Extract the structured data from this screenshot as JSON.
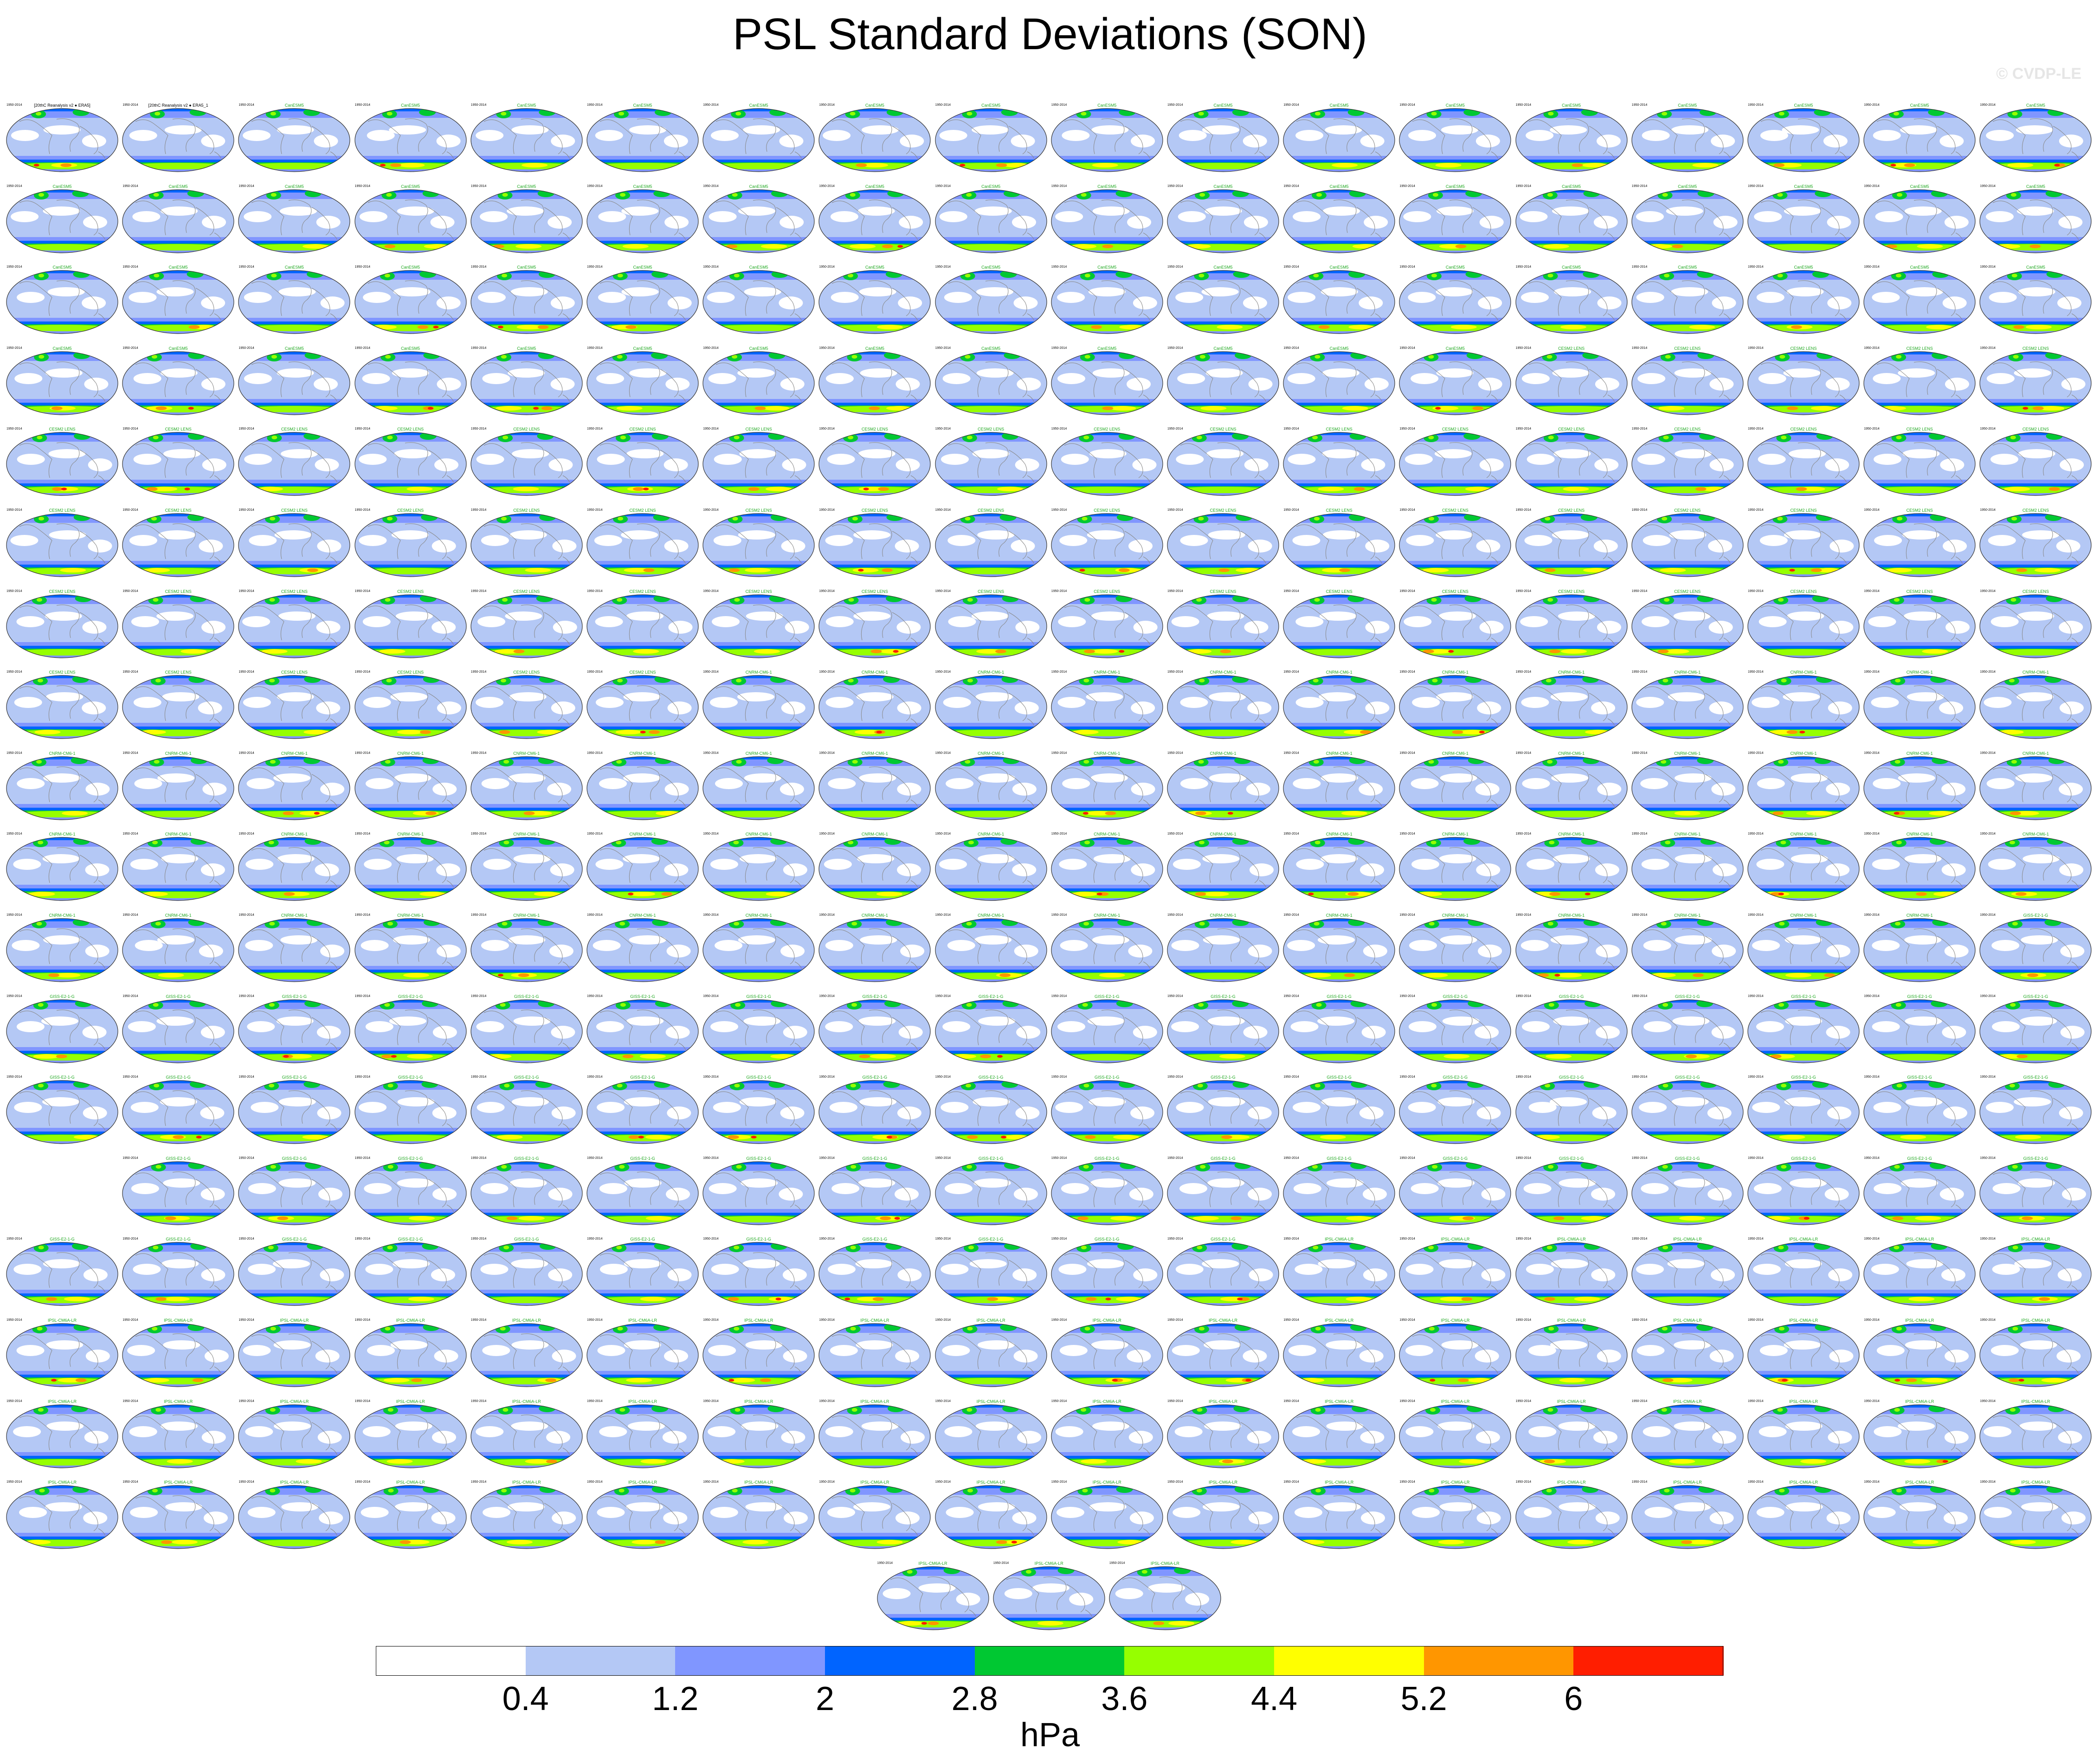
{
  "title": "PSL Standard Deviations (SON)",
  "watermark": "© CVDP-LE",
  "units": "hPa",
  "colors": {
    "levels": [
      "#ffffff",
      "#b4c8f5",
      "#8096ff",
      "#0064ff",
      "#00c832",
      "#96ff00",
      "#ffff00",
      "#ff9600",
      "#ff1e00"
    ],
    "land_outline": "#888888",
    "map_border": "#333333"
  },
  "panel_labels": {
    "obs": [
      "[20thC Reanalysis v2 ● ERA5]",
      "[20thC Reanalysis v2 ● ERA5_1"
    ],
    "models": [
      "CanESM5",
      "CESM2 LENS",
      "CNRM-CM6-1",
      "GISS-E2-1-G",
      "IPSL-CM6A-LR"
    ],
    "period": "1950-2014"
  },
  "chart_data": {
    "type": "heatmap",
    "title": "PSL Standard Deviations (SON)",
    "subtitle": "",
    "colorbar": {
      "ticks": [
        "0.4",
        "1.2",
        "2",
        "2.8",
        "3.6",
        "4.4",
        "5.2",
        "6"
      ],
      "label": "hPa",
      "levels": [
        0.4,
        1.2,
        2.0,
        2.8,
        3.6,
        4.4,
        5.2,
        6.0
      ]
    },
    "panel_rows": [
      {
        "count": 18,
        "offset": 0
      },
      {
        "count": 18,
        "offset": 0
      },
      {
        "count": 18,
        "offset": 0
      },
      {
        "count": 18,
        "offset": 0
      },
      {
        "count": 18,
        "offset": 0
      },
      {
        "count": 18,
        "offset": 0
      },
      {
        "count": 18,
        "offset": 0
      },
      {
        "count": 18,
        "offset": 0
      },
      {
        "count": 18,
        "offset": 0
      },
      {
        "count": 18,
        "offset": 0
      },
      {
        "count": 18,
        "offset": 0
      },
      {
        "count": 18,
        "offset": 0
      },
      {
        "count": 18,
        "offset": 0
      },
      {
        "count": 17,
        "offset": 1
      },
      {
        "count": 18,
        "offset": 0
      },
      {
        "count": 18,
        "offset": 0
      },
      {
        "count": 18,
        "offset": 0
      },
      {
        "count": 18,
        "offset": 0
      },
      {
        "count": 3,
        "offset": 7.5
      }
    ],
    "panel_count": 326
  }
}
